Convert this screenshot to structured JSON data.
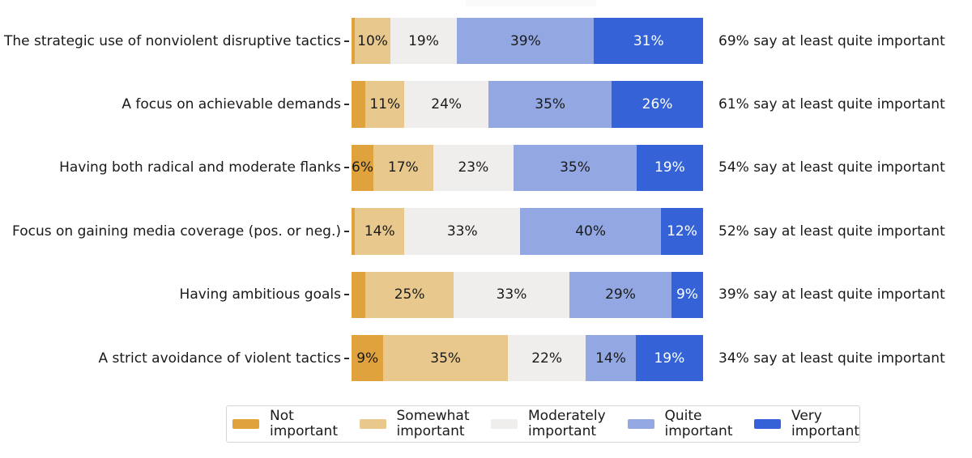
{
  "chart_data": {
    "type": "bar",
    "orientation": "horizontal_stacked",
    "title": "",
    "xlabel": "",
    "ylabel": "",
    "xlim": [
      0,
      100
    ],
    "grid": false,
    "legend_position": "bottom",
    "categories": [
      "The strategic use of nonviolent disruptive tactics",
      "A focus on achievable demands",
      "Having both radical and moderate flanks",
      "Focus on gaining media coverage (pos. or neg.)",
      "Having ambitious goals",
      "A strict avoidance of violent tactics"
    ],
    "series": [
      {
        "name": "Not important",
        "color": "#e0a23c",
        "text_color": "#1a1a1a",
        "values": [
          1,
          4,
          6,
          1,
          4,
          9
        ],
        "display": [
          "",
          "",
          "6%",
          "",
          "",
          "9%"
        ]
      },
      {
        "name": "Somewhat important",
        "color": "#e8c88c",
        "text_color": "#1a1a1a",
        "values": [
          10,
          11,
          17,
          14,
          25,
          35
        ],
        "display": [
          "10%",
          "11%",
          "17%",
          "14%",
          "25%",
          "35%"
        ]
      },
      {
        "name": "Moderately important",
        "color": "#efeeec",
        "text_color": "#1a1a1a",
        "values": [
          19,
          24,
          23,
          33,
          33,
          22
        ],
        "display": [
          "19%",
          "24%",
          "23%",
          "33%",
          "33%",
          "22%"
        ]
      },
      {
        "name": "Quite important",
        "color": "#93a8e2",
        "text_color": "#1a1a1a",
        "values": [
          39,
          35,
          35,
          40,
          29,
          14
        ],
        "display": [
          "39%",
          "35%",
          "35%",
          "40%",
          "29%",
          "14%"
        ]
      },
      {
        "name": "Very important",
        "color": "#3563d7",
        "text_color": "#ffffff",
        "values": [
          31,
          26,
          19,
          12,
          9,
          19
        ],
        "display": [
          "31%",
          "26%",
          "19%",
          "12%",
          "9%",
          "19%"
        ]
      }
    ],
    "annotations": [
      "69% say at least quite important",
      "61% say at least quite important",
      "54% say at least quite important",
      "52% say at least quite important",
      "39% say at least quite important",
      "34% say at least quite important"
    ]
  },
  "legend": {
    "items": [
      {
        "label": "Not\nimportant",
        "color": "#e0a23c"
      },
      {
        "label": "Somewhat\nimportant",
        "color": "#e8c88c"
      },
      {
        "label": "Moderately\nimportant",
        "color": "#efeeec"
      },
      {
        "label": "Quite\nimportant",
        "color": "#93a8e2"
      },
      {
        "label": "Very\nimportant",
        "color": "#3563d7"
      }
    ]
  }
}
